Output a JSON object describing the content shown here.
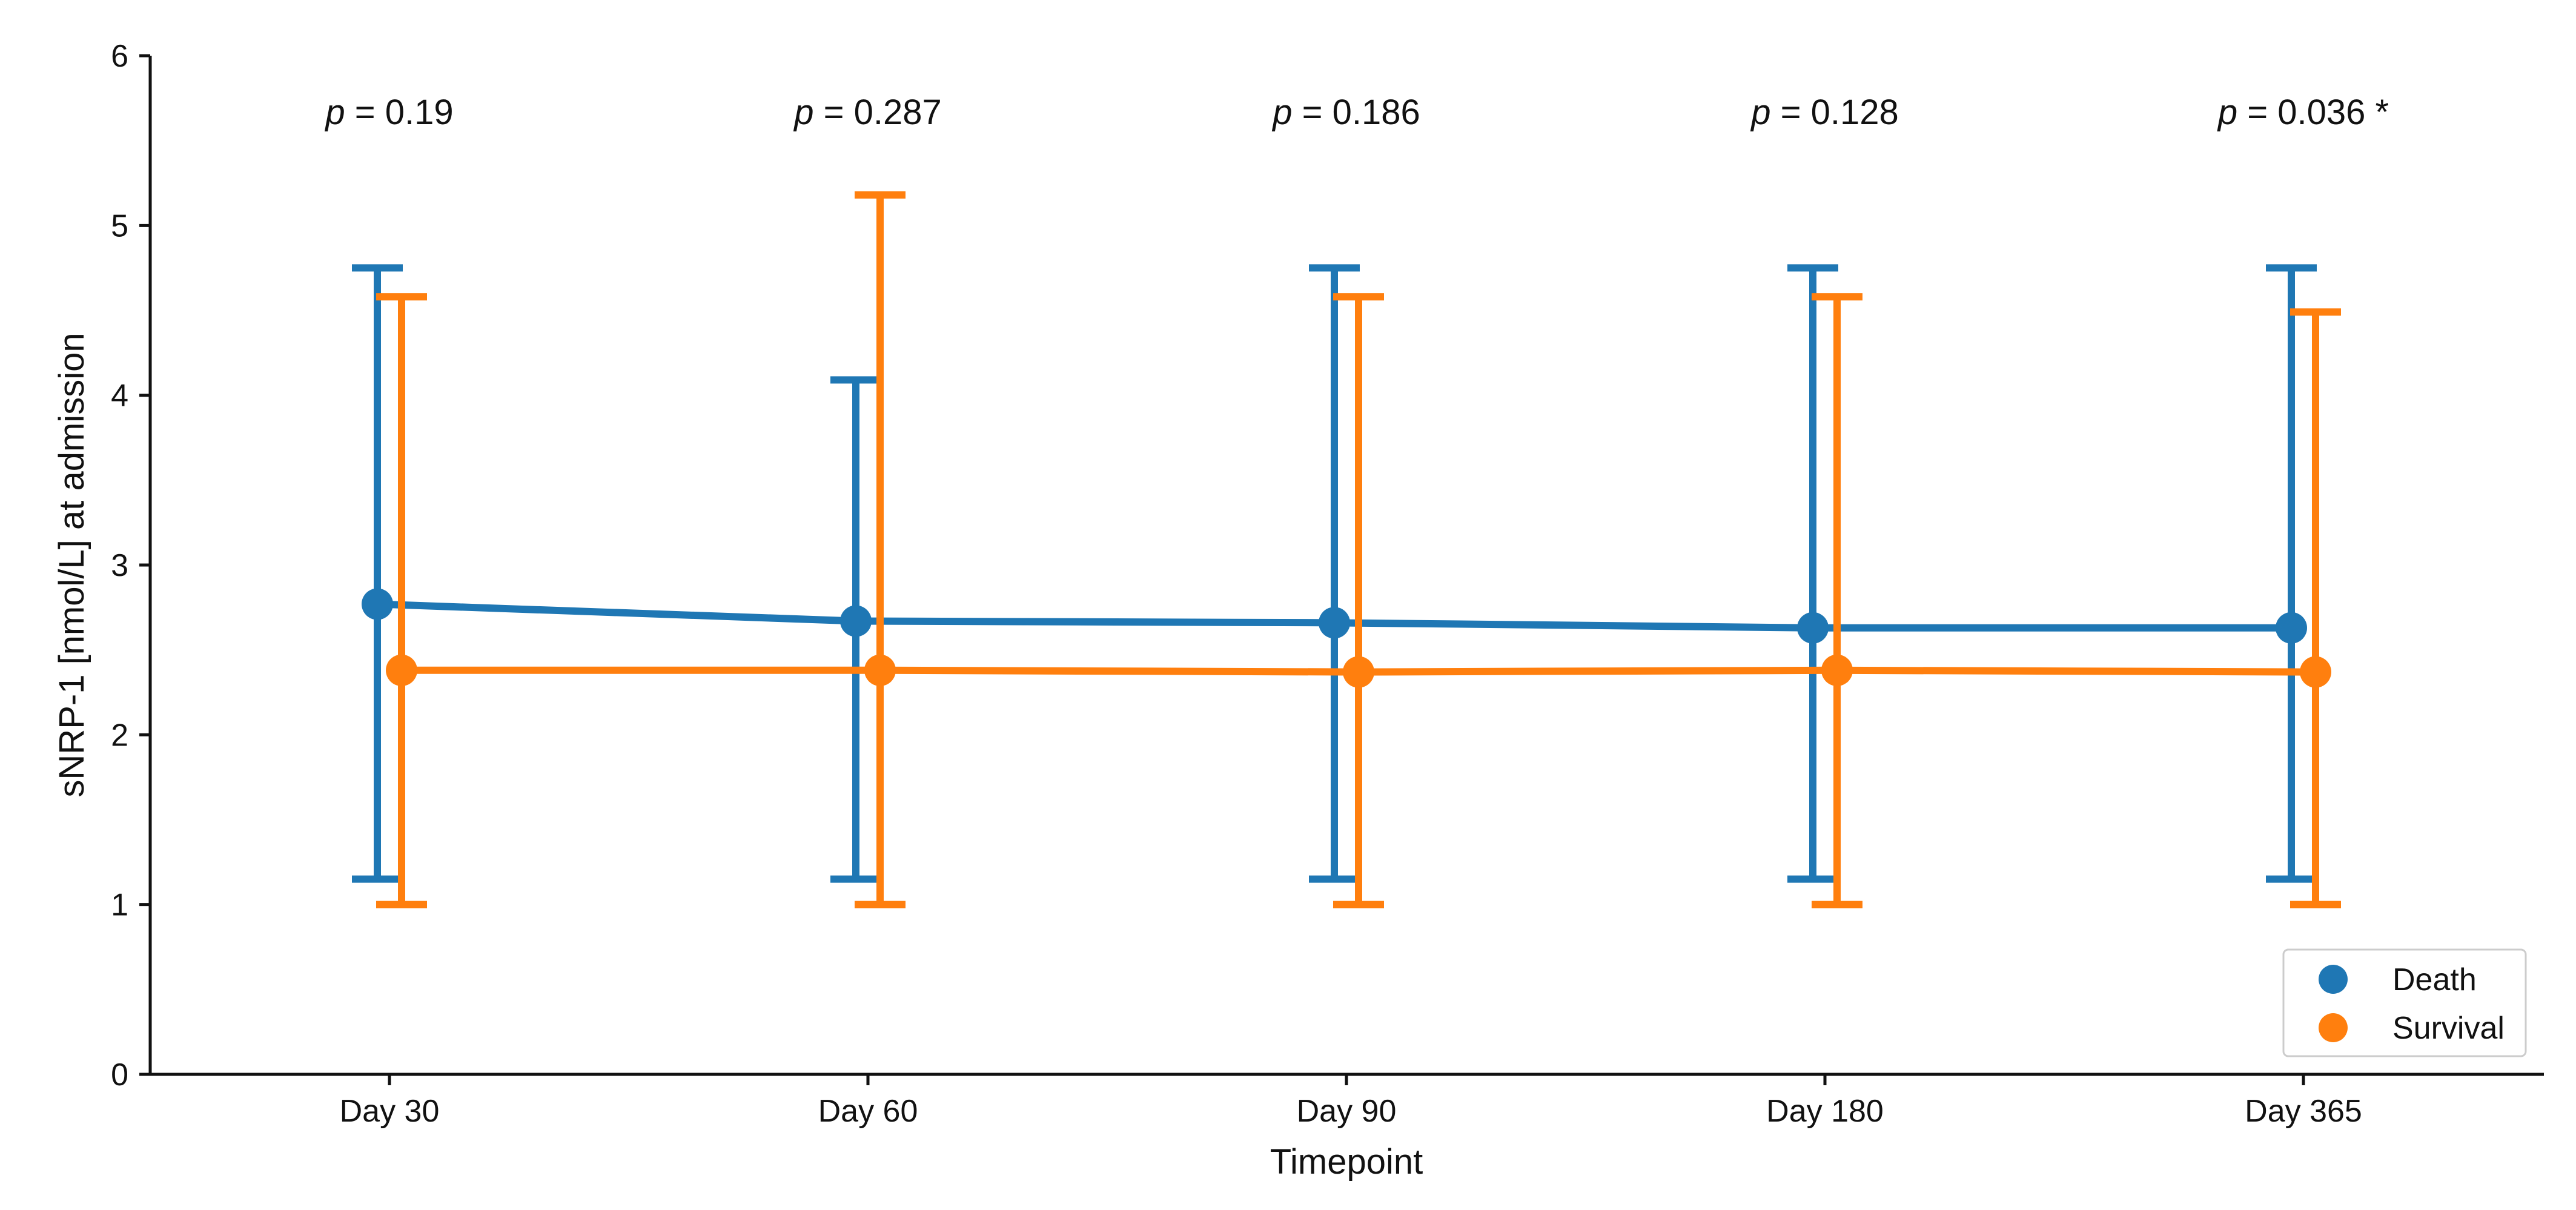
{
  "chart_data": {
    "type": "line",
    "title": "",
    "xlabel": "Timepoint",
    "ylabel": "sNRP-1 [nmol/L] at admission",
    "categories": [
      "Day 30",
      "Day 60",
      "Day 90",
      "Day 180",
      "Day 365"
    ],
    "ylim": [
      0,
      6
    ],
    "yticks": [
      "0",
      "1",
      "2",
      "3",
      "4",
      "5",
      "6"
    ],
    "grid": false,
    "legend_position": "bottom-right",
    "series": [
      {
        "name": "Death",
        "color": "#1f77b4",
        "values": [
          2.77,
          2.67,
          2.66,
          2.63,
          2.63
        ],
        "err_low": [
          1.15,
          1.15,
          1.15,
          1.15,
          1.15
        ],
        "err_high": [
          4.75,
          4.09,
          4.75,
          4.75,
          4.75
        ]
      },
      {
        "name": "Survival",
        "color": "#ff7f0e",
        "values": [
          2.38,
          2.38,
          2.37,
          2.38,
          2.37
        ],
        "err_low": [
          1.0,
          1.0,
          1.0,
          1.0,
          1.0
        ],
        "err_high": [
          4.58,
          5.18,
          4.58,
          4.58,
          4.49
        ]
      }
    ],
    "annotations": [
      {
        "p": "p",
        "text": " = 0.19"
      },
      {
        "p": "p",
        "text": " = 0.287"
      },
      {
        "p": "p",
        "text": " = 0.186"
      },
      {
        "p": "p",
        "text": " = 0.128"
      },
      {
        "p": "p",
        "text": " = 0.036 *"
      }
    ]
  }
}
